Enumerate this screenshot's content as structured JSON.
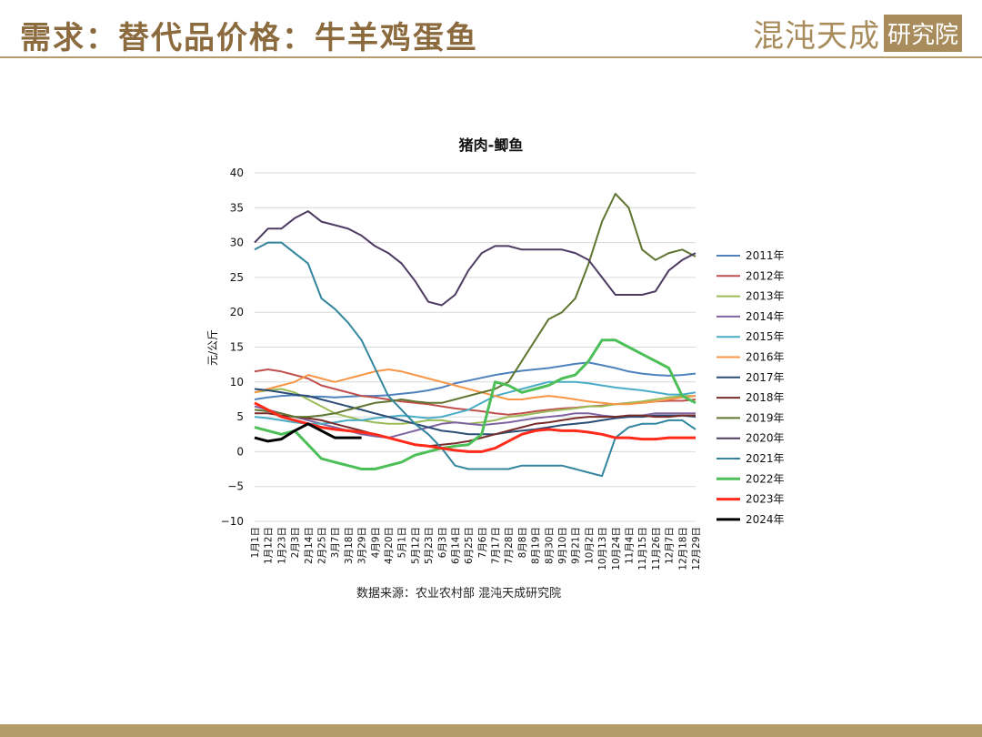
{
  "header": {
    "title": "需求：替代品价格：牛羊鸡蛋鱼",
    "logo_main": "混沌天成",
    "logo_sub": "研究院"
  },
  "source_text": "数据来源：农业农村部 混沌天成研究院",
  "chart_data": {
    "type": "line",
    "title": "猪肉-鲫鱼",
    "ylabel": "元/公斤",
    "xlabel": "",
    "ylim": [
      -10,
      40
    ],
    "yticks": [
      40,
      35,
      30,
      25,
      20,
      15,
      10,
      5,
      0,
      -5,
      -10
    ],
    "grid": true,
    "legend_position": "right",
    "x_ticks": [
      "1月1日",
      "1月12日",
      "1月23日",
      "2月3日",
      "2月14日",
      "2月25日",
      "3月7日",
      "3月18日",
      "3月29日",
      "4月9日",
      "4月20日",
      "5月1日",
      "5月12日",
      "5月23日",
      "6月3日",
      "6月14日",
      "6月25日",
      "7月6日",
      "7月17日",
      "7月28日",
      "8月8日",
      "8月19日",
      "8月30日",
      "9月10日",
      "9月21日",
      "10月2日",
      "10月13日",
      "10月24日",
      "11月4日",
      "11月15日",
      "11月26日",
      "12月7日",
      "12月18日",
      "12月29日"
    ],
    "x_index": [
      0,
      1,
      2,
      3,
      4,
      5,
      6,
      7,
      8,
      9,
      10,
      11,
      12,
      13,
      14,
      15,
      16,
      17,
      18,
      19,
      20,
      21,
      22,
      23,
      24,
      25,
      26,
      27,
      28,
      29,
      30,
      31,
      32,
      33
    ],
    "series": [
      {
        "name": "2011年",
        "color": "#4f81bd",
        "width": 2,
        "values": [
          7.5,
          7.8,
          8.0,
          8.1,
          7.9,
          7.9,
          7.8,
          7.9,
          8.0,
          8.0,
          8.1,
          8.3,
          8.5,
          8.8,
          9.2,
          9.8,
          10.2,
          10.6,
          11.0,
          11.3,
          11.6,
          11.8,
          12.0,
          12.3,
          12.6,
          12.8,
          12.4,
          12.0,
          11.5,
          11.2,
          11.0,
          10.9,
          11.0,
          11.2
        ]
      },
      {
        "name": "2012年",
        "color": "#c0504d",
        "width": 2,
        "values": [
          11.5,
          11.8,
          11.5,
          11.0,
          10.5,
          9.5,
          9.0,
          8.5,
          8.0,
          7.8,
          7.5,
          7.2,
          7.0,
          6.8,
          6.5,
          6.2,
          6.0,
          5.8,
          5.5,
          5.3,
          5.5,
          5.8,
          6.0,
          6.2,
          6.3,
          6.5,
          6.6,
          6.8,
          7.0,
          7.0,
          7.2,
          7.3,
          7.3,
          7.5
        ]
      },
      {
        "name": "2013年",
        "color": "#9bbb59",
        "width": 2,
        "values": [
          8.5,
          8.8,
          9.0,
          8.5,
          7.5,
          6.5,
          5.5,
          5.0,
          4.5,
          4.2,
          4.0,
          4.0,
          4.2,
          4.5,
          4.5,
          4.2,
          4.0,
          4.2,
          4.5,
          5.0,
          5.2,
          5.5,
          5.8,
          6.0,
          6.2,
          6.5,
          6.5,
          6.8,
          7.0,
          7.2,
          7.5,
          7.8,
          8.0,
          8.0
        ]
      },
      {
        "name": "2014年",
        "color": "#8064a2",
        "width": 2,
        "values": [
          6.5,
          6.0,
          5.5,
          5.0,
          4.5,
          4.0,
          3.5,
          3.0,
          2.5,
          2.2,
          2.0,
          2.5,
          3.0,
          3.5,
          4.0,
          4.2,
          4.0,
          3.8,
          4.0,
          4.2,
          4.5,
          4.8,
          5.0,
          5.2,
          5.5,
          5.5,
          5.2,
          5.0,
          5.0,
          5.2,
          5.5,
          5.5,
          5.5,
          5.5
        ]
      },
      {
        "name": "2015年",
        "color": "#4bacc6",
        "width": 2,
        "values": [
          5.0,
          4.8,
          4.5,
          4.2,
          4.0,
          4.0,
          4.2,
          4.5,
          4.5,
          4.8,
          5.0,
          5.2,
          5.0,
          4.8,
          5.0,
          5.5,
          6.0,
          7.0,
          8.0,
          8.5,
          9.0,
          9.5,
          10.0,
          10.0,
          10.0,
          9.8,
          9.5,
          9.2,
          9.0,
          8.8,
          8.5,
          8.2,
          8.2,
          8.5
        ]
      },
      {
        "name": "2016年",
        "color": "#f79646",
        "width": 2,
        "values": [
          8.5,
          9.0,
          9.5,
          10.0,
          11.0,
          10.5,
          10.0,
          10.5,
          11.0,
          11.5,
          11.8,
          11.5,
          11.0,
          10.5,
          10.0,
          9.5,
          9.0,
          8.5,
          8.0,
          7.5,
          7.5,
          7.8,
          8.0,
          7.8,
          7.5,
          7.2,
          7.0,
          6.8,
          6.8,
          7.0,
          7.2,
          7.5,
          7.8,
          8.0
        ]
      },
      {
        "name": "2017年",
        "color": "#2c4d75",
        "width": 2,
        "values": [
          9.0,
          8.8,
          8.5,
          8.2,
          8.0,
          7.5,
          7.0,
          6.5,
          6.0,
          5.5,
          5.0,
          4.5,
          4.0,
          3.5,
          3.0,
          2.8,
          2.5,
          2.5,
          2.5,
          2.8,
          3.0,
          3.2,
          3.5,
          3.8,
          4.0,
          4.2,
          4.5,
          4.8,
          5.0,
          5.0,
          5.2,
          5.2,
          5.2,
          5.0
        ]
      },
      {
        "name": "2018年",
        "color": "#772c2a",
        "width": 2,
        "values": [
          5.5,
          5.5,
          5.2,
          5.0,
          4.8,
          4.5,
          4.0,
          3.5,
          3.0,
          2.5,
          2.0,
          1.5,
          1.0,
          0.8,
          1.0,
          1.2,
          1.5,
          2.0,
          2.5,
          3.0,
          3.5,
          4.0,
          4.2,
          4.5,
          4.8,
          5.0,
          5.0,
          5.0,
          5.2,
          5.2,
          5.0,
          5.0,
          5.2,
          5.2
        ]
      },
      {
        "name": "2019年",
        "color": "#5f7530",
        "width": 2,
        "values": [
          6.0,
          5.8,
          5.5,
          5.0,
          5.0,
          5.2,
          5.5,
          6.0,
          6.5,
          7.0,
          7.2,
          7.5,
          7.2,
          7.0,
          7.0,
          7.5,
          8.0,
          8.5,
          9.0,
          10.0,
          13.0,
          16.0,
          19.0,
          20.0,
          22.0,
          27.0,
          33.0,
          37.0,
          35.0,
          29.0,
          27.5,
          28.5,
          29.0,
          28.0
        ]
      },
      {
        "name": "2020年",
        "color": "#4d3b62",
        "width": 2,
        "values": [
          30.0,
          32.0,
          32.0,
          33.5,
          34.5,
          33.0,
          32.5,
          32.0,
          31.0,
          29.5,
          28.5,
          27.0,
          24.5,
          21.5,
          21.0,
          22.5,
          26.0,
          28.5,
          29.5,
          29.5,
          29.0,
          29.0,
          29.0,
          29.0,
          28.5,
          27.5,
          25.0,
          22.5,
          22.5,
          22.5,
          23.0,
          26.0,
          27.5,
          28.5
        ]
      },
      {
        "name": "2021年",
        "color": "#31859c",
        "width": 2,
        "values": [
          29.0,
          30.0,
          30.0,
          28.5,
          27.0,
          22.0,
          20.5,
          18.5,
          16.0,
          12.0,
          8.0,
          6.0,
          4.0,
          2.5,
          0.5,
          -2.0,
          -2.5,
          -2.5,
          -2.5,
          -2.5,
          -2.0,
          -2.0,
          -2.0,
          -2.0,
          -2.5,
          -3.0,
          -3.5,
          2.0,
          3.5,
          4.0,
          4.0,
          4.5,
          4.5,
          3.2
        ]
      },
      {
        "name": "2022年",
        "color": "#4dbf58",
        "width": 3,
        "values": [
          3.5,
          3.0,
          2.5,
          3.0,
          1.0,
          -1.0,
          -1.5,
          -2.0,
          -2.5,
          -2.5,
          -2.0,
          -1.5,
          -0.5,
          0.0,
          0.5,
          0.8,
          1.0,
          2.5,
          10.0,
          9.5,
          8.5,
          9.0,
          9.5,
          10.5,
          11.0,
          13.0,
          16.0,
          16.0,
          15.0,
          14.0,
          13.0,
          12.0,
          8.0,
          7.0
        ]
      },
      {
        "name": "2023年",
        "color": "#ff2a1a",
        "width": 3,
        "values": [
          7.0,
          6.0,
          5.0,
          4.5,
          4.0,
          3.5,
          3.2,
          3.0,
          2.8,
          2.5,
          2.0,
          1.5,
          1.0,
          0.8,
          0.5,
          0.2,
          0.0,
          0.0,
          0.5,
          1.5,
          2.5,
          3.0,
          3.2,
          3.0,
          3.0,
          2.8,
          2.5,
          2.0,
          2.0,
          1.8,
          1.8,
          2.0,
          2.0,
          2.0
        ]
      },
      {
        "name": "2024年",
        "color": "#000000",
        "width": 3,
        "values": [
          2.0,
          1.5,
          1.8,
          3.0,
          4.0,
          3.0,
          2.0,
          2.0,
          2.0
        ]
      }
    ]
  }
}
